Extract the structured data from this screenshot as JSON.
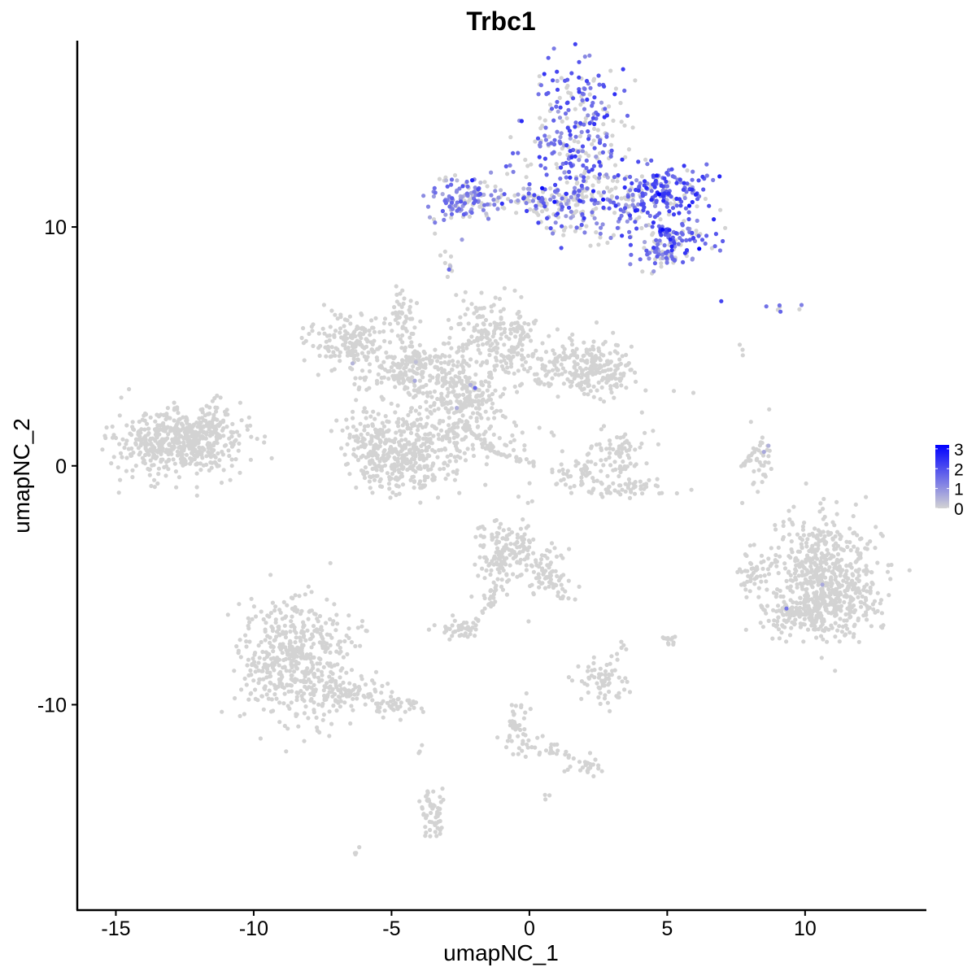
{
  "chart_data": {
    "type": "scatter",
    "title": "Trbc1",
    "xlabel": "umapNC_1",
    "ylabel": "umapNC_2",
    "xlim": [
      -16.4,
      14.4
    ],
    "ylim": [
      -18.6,
      17.8
    ],
    "xticks": [
      -15,
      -10,
      -5,
      0,
      5,
      10
    ],
    "xtick_labels": [
      "-15",
      "-10",
      "-5",
      "0",
      "5",
      "10"
    ],
    "yticks": [
      -10,
      0,
      10
    ],
    "ytick_labels": [
      "-10",
      "0",
      "10"
    ],
    "grid": false,
    "legend": {
      "placement": "right",
      "type": "colorbar",
      "min": 0,
      "max": 3.2,
      "ticks": [
        0,
        1,
        2,
        3
      ],
      "tick_labels": [
        "0",
        "1",
        "2",
        "3"
      ],
      "low_color": "#d3d3d3",
      "high_color": "#0000ff"
    },
    "clusters": [
      {
        "cx": 1.8,
        "cy": 13.6,
        "sx": 1.0,
        "sy": 1.5,
        "n": 300,
        "expr": 0.65,
        "mean": 1.6
      },
      {
        "cx": 4.9,
        "cy": 11.6,
        "sx": 0.8,
        "sy": 0.5,
        "n": 150,
        "expr": 0.8,
        "mean": 1.9
      },
      {
        "cx": 3.5,
        "cy": 10.8,
        "sx": 1.2,
        "sy": 0.8,
        "n": 130,
        "expr": 0.55,
        "mean": 1.5
      },
      {
        "cx": 5.3,
        "cy": 9.6,
        "sx": 0.7,
        "sy": 0.4,
        "n": 90,
        "expr": 0.75,
        "mean": 1.7
      },
      {
        "cx": 4.8,
        "cy": 8.8,
        "sx": 0.5,
        "sy": 0.3,
        "n": 50,
        "expr": 0.6,
        "mean": 1.3
      },
      {
        "cx": -2.4,
        "cy": 11.2,
        "sx": 0.6,
        "sy": 0.5,
        "n": 120,
        "expr": 0.7,
        "mean": 1.2
      },
      {
        "cx": -0.5,
        "cy": 11.1,
        "sx": 1.1,
        "sy": 0.25,
        "n": 60,
        "expr": 0.5,
        "mean": 1.2
      },
      {
        "cx": 1.2,
        "cy": 11.0,
        "sx": 0.7,
        "sy": 0.5,
        "n": 80,
        "expr": 0.5,
        "mean": 1.4
      },
      {
        "cx": -3.0,
        "cy": 8.6,
        "sx": 0.15,
        "sy": 0.4,
        "n": 10,
        "expr": 0.3,
        "mean": 1.0
      },
      {
        "cx": 7.0,
        "cy": 6.9,
        "sx": 0.05,
        "sy": 0.05,
        "n": 1,
        "expr": 1.0,
        "mean": 1.8
      },
      {
        "cx": 8.5,
        "cy": 6.7,
        "sx": 0.05,
        "sy": 0.05,
        "n": 1,
        "expr": 1.0,
        "mean": 2.8
      },
      {
        "cx": 9.6,
        "cy": 6.6,
        "sx": 0.3,
        "sy": 0.15,
        "n": 6,
        "expr": 0.5,
        "mean": 1.3
      },
      {
        "cx": 7.7,
        "cy": 4.7,
        "sx": 0.05,
        "sy": 0.15,
        "n": 3,
        "expr": 0,
        "mean": 0
      },
      {
        "cx": -12.7,
        "cy": 1.0,
        "sx": 1.2,
        "sy": 0.7,
        "n": 550,
        "expr": 0.0,
        "mean": 0
      },
      {
        "cx": -11.5,
        "cy": 2.0,
        "sx": 0.25,
        "sy": 0.4,
        "n": 30,
        "expr": 0.0,
        "mean": 0
      },
      {
        "cx": -6.4,
        "cy": 5.2,
        "sx": 0.8,
        "sy": 0.6,
        "n": 180,
        "expr": 0.01,
        "mean": 0.8
      },
      {
        "cx": -4.0,
        "cy": 4.0,
        "sx": 1.0,
        "sy": 0.5,
        "n": 200,
        "expr": 0.01,
        "mean": 0.8
      },
      {
        "cx": -1.2,
        "cy": 5.4,
        "sx": 0.8,
        "sy": 0.8,
        "n": 200,
        "expr": 0.01,
        "mean": 0.8
      },
      {
        "cx": 1.3,
        "cy": 4.2,
        "sx": 0.9,
        "sy": 0.6,
        "n": 150,
        "expr": 0.0,
        "mean": 0
      },
      {
        "cx": 2.5,
        "cy": 3.9,
        "sx": 0.6,
        "sy": 0.5,
        "n": 120,
        "expr": 0.0,
        "mean": 0
      },
      {
        "cx": -3.3,
        "cy": 1.8,
        "sx": 0.8,
        "sy": 1.2,
        "n": 220,
        "expr": 0.0,
        "mean": 0
      },
      {
        "cx": -5.5,
        "cy": 0.8,
        "sx": 0.6,
        "sy": 0.8,
        "n": 200,
        "expr": 0.0,
        "mean": 0
      },
      {
        "cx": -4.3,
        "cy": 0.3,
        "sx": 0.6,
        "sy": 0.6,
        "n": 140,
        "expr": 0.0,
        "mean": 0
      },
      {
        "cx": -2.0,
        "cy": 2.8,
        "sx": 0.6,
        "sy": 0.5,
        "n": 120,
        "expr": 0.01,
        "mean": 0.8
      },
      {
        "cx": -1.5,
        "cy": 1.0,
        "sx": 0.8,
        "sy": 0.4,
        "n": 40,
        "expr": 0.0,
        "mean": 0
      },
      {
        "cx": -4.6,
        "cy": 6.5,
        "sx": 0.25,
        "sy": 0.4,
        "n": 30,
        "expr": 0.0,
        "mean": 0
      },
      {
        "cx": 3.3,
        "cy": 0.5,
        "sx": 0.5,
        "sy": 0.5,
        "n": 60,
        "expr": 0.0,
        "mean": 0
      },
      {
        "cx": 3.4,
        "cy": -0.9,
        "sx": 0.9,
        "sy": 0.2,
        "n": 60,
        "expr": 0.0,
        "mean": 0
      },
      {
        "cx": 2.0,
        "cy": -0.2,
        "sx": 0.6,
        "sy": 0.3,
        "n": 40,
        "expr": 0.0,
        "mean": 0
      },
      {
        "cx": 8.4,
        "cy": 0.2,
        "sx": 0.2,
        "sy": 0.6,
        "n": 30,
        "expr": 0.05,
        "mean": 1.3
      },
      {
        "cx": 10.7,
        "cy": -4.5,
        "sx": 1.0,
        "sy": 1.2,
        "n": 500,
        "expr": 0.0,
        "mean": 0
      },
      {
        "cx": 9.7,
        "cy": -6.3,
        "sx": 0.7,
        "sy": 0.4,
        "n": 120,
        "expr": 0.01,
        "mean": 1.2
      },
      {
        "cx": 11.2,
        "cy": -5.6,
        "sx": 0.7,
        "sy": 0.6,
        "n": 120,
        "expr": 0.01,
        "mean": 0.8
      },
      {
        "cx": 8.1,
        "cy": -4.5,
        "sx": 0.3,
        "sy": 0.4,
        "n": 40,
        "expr": 0.0,
        "mean": 0
      },
      {
        "cx": -8.5,
        "cy": -8.1,
        "sx": 1.0,
        "sy": 1.3,
        "n": 500,
        "expr": 0.0,
        "mean": 0
      },
      {
        "cx": -6.6,
        "cy": -9.5,
        "sx": 0.8,
        "sy": 0.3,
        "n": 80,
        "expr": 0.0,
        "mean": 0
      },
      {
        "cx": -5.0,
        "cy": -10.1,
        "sx": 0.5,
        "sy": 0.2,
        "n": 40,
        "expr": 0.0,
        "mean": 0
      },
      {
        "cx": -0.8,
        "cy": -3.6,
        "sx": 0.6,
        "sy": 0.6,
        "n": 140,
        "expr": 0.0,
        "mean": 0
      },
      {
        "cx": 0.6,
        "cy": -4.6,
        "sx": 0.5,
        "sy": 0.6,
        "n": 60,
        "expr": 0.0,
        "mean": 0
      },
      {
        "cx": -1.3,
        "cy": -5.0,
        "sx": 0.3,
        "sy": 0.6,
        "n": 30,
        "expr": 0.0,
        "mean": 0
      },
      {
        "cx": -2.6,
        "cy": -6.9,
        "sx": 0.4,
        "sy": 0.2,
        "n": 40,
        "expr": 0.0,
        "mean": 0
      },
      {
        "cx": 2.6,
        "cy": -9.0,
        "sx": 0.4,
        "sy": 0.5,
        "n": 70,
        "expr": 0.0,
        "mean": 0
      },
      {
        "cx": 5.0,
        "cy": -7.3,
        "sx": 0.15,
        "sy": 0.2,
        "n": 12,
        "expr": 0.0,
        "mean": 0
      },
      {
        "cx": 3.4,
        "cy": -7.6,
        "sx": 0.1,
        "sy": 0.2,
        "n": 5,
        "expr": 0.0,
        "mean": 0
      },
      {
        "cx": -0.4,
        "cy": -11.0,
        "sx": 0.3,
        "sy": 0.9,
        "n": 30,
        "expr": 0.0,
        "mean": 0
      },
      {
        "cx": 2.1,
        "cy": -12.5,
        "sx": 0.4,
        "sy": 0.2,
        "n": 20,
        "expr": 0.0,
        "mean": 0
      },
      {
        "cx": 0.8,
        "cy": -11.9,
        "sx": 0.4,
        "sy": 0.15,
        "n": 12,
        "expr": 0.0,
        "mean": 0
      },
      {
        "cx": -3.5,
        "cy": -14.8,
        "sx": 0.3,
        "sy": 0.6,
        "n": 35,
        "expr": 0.03,
        "mean": 1.0
      },
      {
        "cx": -6.2,
        "cy": -16.2,
        "sx": 0.1,
        "sy": 0.1,
        "n": 4,
        "expr": 0.0,
        "mean": 0
      },
      {
        "cx": -4.0,
        "cy": -11.9,
        "sx": 0.05,
        "sy": 0.2,
        "n": 3,
        "expr": 0.0,
        "mean": 0
      },
      {
        "cx": 0.6,
        "cy": -13.9,
        "sx": 0.1,
        "sy": 0.1,
        "n": 3,
        "expr": 0.0,
        "mean": 0
      },
      {
        "cx": 1.0,
        "cy": -1.0,
        "sx": 0.8,
        "sy": 1.3,
        "n": 10,
        "expr": 0.0,
        "mean": 0
      },
      {
        "cx": 2.8,
        "cy": 2.5,
        "sx": 2.0,
        "sy": 2.0,
        "n": 15,
        "expr": 0.0,
        "mean": 0
      }
    ],
    "strands": [
      {
        "x1": -4.6,
        "y1": 7.5,
        "x2": -4.2,
        "y2": 4.2,
        "n": 25,
        "jitter": 0.12
      },
      {
        "x1": -2.4,
        "y1": 1.7,
        "x2": -1.3,
        "y2": 0.6,
        "n": 30,
        "jitter": 0.06
      },
      {
        "x1": -1.3,
        "y1": 0.6,
        "x2": 0.2,
        "y2": 0.1,
        "n": 25,
        "jitter": 0.05
      },
      {
        "x1": 7.6,
        "y1": -0.2,
        "x2": 8.5,
        "y2": 1.2,
        "n": 18,
        "jitter": 0.06
      },
      {
        "x1": -1.2,
        "y1": -5.0,
        "x2": -2.0,
        "y2": -6.8,
        "n": 16,
        "jitter": 0.08
      },
      {
        "x1": -0.7,
        "y1": -10.5,
        "x2": -0.1,
        "y2": -11.8,
        "n": 18,
        "jitter": 0.08
      },
      {
        "x1": 0.8,
        "y1": -11.9,
        "x2": 2.5,
        "y2": -12.6,
        "n": 16,
        "jitter": 0.08
      },
      {
        "x1": -3.7,
        "y1": -13.6,
        "x2": -3.3,
        "y2": -15.3,
        "n": 20,
        "jitter": 0.08
      },
      {
        "x1": 0.2,
        "y1": -4.0,
        "x2": 1.2,
        "y2": -5.6,
        "n": 16,
        "jitter": 0.1
      }
    ]
  }
}
